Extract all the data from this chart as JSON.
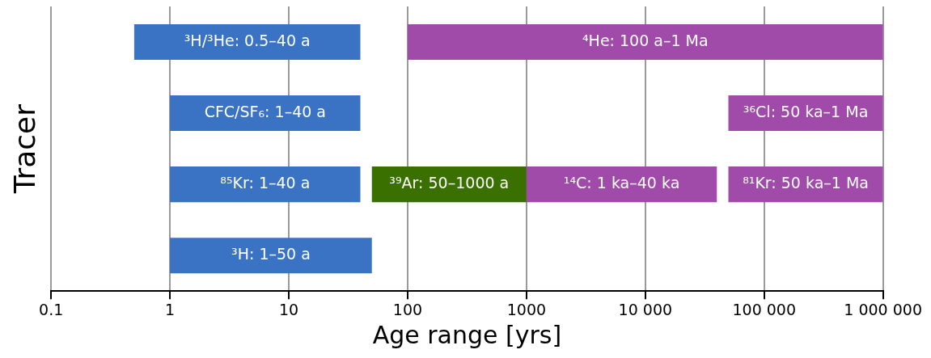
{
  "chart_data": {
    "type": "bar",
    "orientation": "horizontal",
    "log": "x",
    "xlabel": "Age range [yrs]",
    "ylabel": "Tracer",
    "categories": [
      null,
      null,
      null,
      null
    ],
    "series": [
      {
        "color": "#3a72c4",
        "values": [
          39.5,
          39,
          39,
          49
        ],
        "base": [
          0.5,
          1,
          1,
          1
        ],
        "value_labels": [
          "³H/³He: 0.5–40 a",
          "CFC/SF₆: 1–40 a",
          "⁸⁵Kr: 1–40 a",
          "³H: 1–50 a"
        ]
      },
      {
        "color": "#a04aaa",
        "values": [
          999900,
          950000,
          39000,
          null
        ],
        "base": [
          100,
          50000,
          1000,
          null
        ],
        "value_labels": [
          "⁴He: 100 a–1 Ma",
          "³⁶Cl: 50 ka–1 Ma",
          "¹⁴C: 1 ka–40 ka",
          null
        ]
      },
      {
        "color": "#a04aaa",
        "values": [
          null,
          null,
          950000,
          null
        ],
        "base": [
          null,
          null,
          50000,
          null
        ],
        "value_labels": [
          null,
          null,
          "⁸¹Kr: 50 ka–1 Ma",
          null
        ]
      },
      {
        "color": "#3a7000",
        "values": [
          null,
          null,
          950,
          null
        ],
        "base": [
          null,
          null,
          50,
          null
        ],
        "value_labels": [
          null,
          null,
          "³⁹Ar: 50–1000 a",
          null
        ]
      }
    ],
    "xlim": [
      0.1,
      1000000
    ],
    "xticks": [
      0.1,
      1,
      10,
      100,
      1000,
      {
        "value": 10000,
        "label": "10 000"
      },
      {
        "value": 100000,
        "label": "100 000"
      },
      {
        "value": 1000000,
        "label": "1 000 000"
      }
    ],
    "grid": "x",
    "legend": false,
    "tick_labels": "x"
  }
}
